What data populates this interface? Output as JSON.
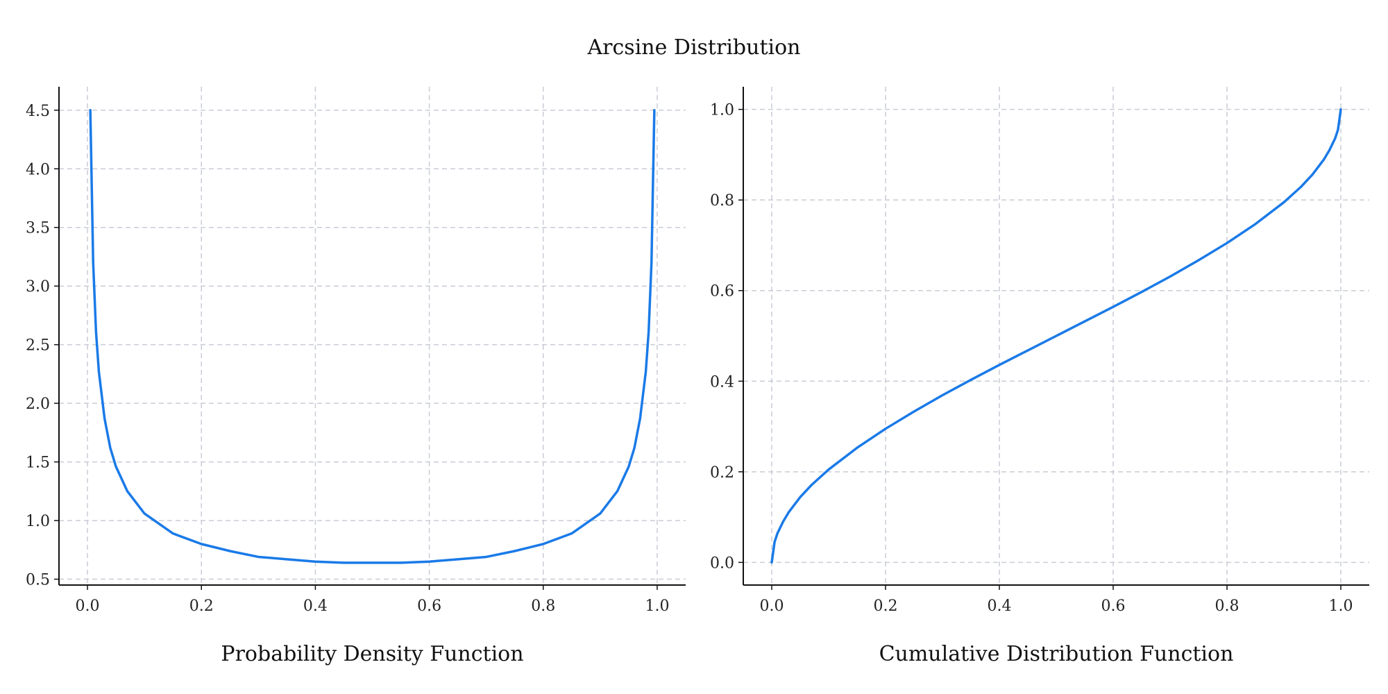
{
  "title": "Arcsine Distribution",
  "style": {
    "line_color": "#1a7ae8",
    "grid_color": "#c9ccd6",
    "axis_color": "#111111",
    "grid": true,
    "grid_style": "dashed"
  },
  "chart_data": [
    {
      "type": "line",
      "xlabel": "Probability Density Function",
      "ylabel": "",
      "xlim": [
        -0.05,
        1.05
      ],
      "ylim": [
        0.45,
        4.7
      ],
      "xticks": [
        "0.0",
        "0.2",
        "0.4",
        "0.6",
        "0.8",
        "1.0"
      ],
      "yticks": [
        "0.5",
        "1.0",
        "1.5",
        "2.0",
        "2.5",
        "3.0",
        "3.5",
        "4.0",
        "4.5"
      ],
      "series": [
        {
          "color": "#1a7ae8",
          "x": [
            0.005,
            0.01,
            0.015,
            0.02,
            0.03,
            0.04,
            0.05,
            0.07,
            0.1,
            0.15,
            0.2,
            0.25,
            0.3,
            0.35,
            0.4,
            0.45,
            0.5,
            0.55,
            0.6,
            0.65,
            0.7,
            0.75,
            0.8,
            0.85,
            0.9,
            0.93,
            0.95,
            0.96,
            0.97,
            0.98,
            0.985,
            0.99,
            0.995
          ],
          "y": [
            4.5,
            3.2,
            2.61,
            2.27,
            1.87,
            1.62,
            1.46,
            1.25,
            1.06,
            0.89,
            0.8,
            0.74,
            0.69,
            0.67,
            0.65,
            0.64,
            0.64,
            0.64,
            0.65,
            0.67,
            0.69,
            0.74,
            0.8,
            0.89,
            1.06,
            1.25,
            1.46,
            1.62,
            1.87,
            2.27,
            2.61,
            3.2,
            4.5
          ]
        }
      ]
    },
    {
      "type": "line",
      "xlabel": "Cumulative Distribution Function",
      "ylabel": "",
      "xlim": [
        -0.05,
        1.05
      ],
      "ylim": [
        -0.05,
        1.05
      ],
      "xticks": [
        "0.0",
        "0.2",
        "0.4",
        "0.6",
        "0.8",
        "1.0"
      ],
      "yticks": [
        "0.0",
        "0.2",
        "0.4",
        "0.6",
        "0.8",
        "1.0"
      ],
      "series": [
        {
          "color": "#1a7ae8",
          "x": [
            0.0,
            0.005,
            0.01,
            0.02,
            0.03,
            0.05,
            0.07,
            0.1,
            0.15,
            0.2,
            0.25,
            0.3,
            0.35,
            0.4,
            0.45,
            0.5,
            0.55,
            0.6,
            0.65,
            0.7,
            0.75,
            0.8,
            0.85,
            0.9,
            0.93,
            0.95,
            0.97,
            0.98,
            0.99,
            0.995,
            1.0
          ],
          "y": [
            0.0,
            0.045,
            0.064,
            0.09,
            0.111,
            0.144,
            0.171,
            0.205,
            0.253,
            0.295,
            0.333,
            0.369,
            0.403,
            0.436,
            0.468,
            0.5,
            0.532,
            0.564,
            0.597,
            0.631,
            0.667,
            0.705,
            0.747,
            0.795,
            0.829,
            0.856,
            0.889,
            0.91,
            0.936,
            0.955,
            1.0
          ]
        }
      ]
    }
  ]
}
